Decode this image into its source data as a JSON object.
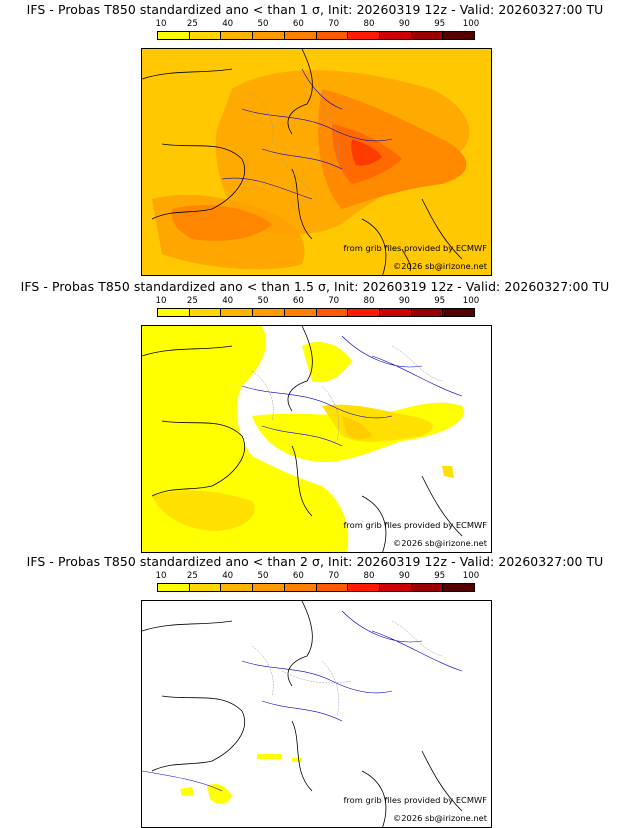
{
  "legend": {
    "ticks": [
      "10",
      "25",
      "40",
      "50",
      "60",
      "70",
      "80",
      "90",
      "95",
      "100"
    ],
    "colors": [
      "#ffff00",
      "#ffd700",
      "#ffb400",
      "#ff9a00",
      "#ff7f00",
      "#ff5a00",
      "#ff1a00",
      "#cc0000",
      "#990000",
      "#550000"
    ]
  },
  "panels": [
    {
      "title": "IFS - Probas T850  standardized ano < than 1 σ, Init: 20260319 12z - Valid: 20260327:00 TU",
      "credit_source": "from grib files provided by ECMWF",
      "credit_author": "©2026 sb@irizone.net",
      "base_fill": "#ffcc00"
    },
    {
      "title": "IFS - Probas T850  standardized ano < than 1.5 σ, Init: 20260319 12z - Valid: 20260327:00 TU",
      "credit_source": "from grib files provided by ECMWF",
      "credit_author": "©2026 sb@irizone.net",
      "base_fill": "#ffff00"
    },
    {
      "title": "IFS - Probas T850  standardized ano < than 2 σ, Init: 20260319 12z - Valid: 20260327:00 TU",
      "credit_source": "from grib files provided by ECMWF",
      "credit_author": "©2026 sb@irizone.net",
      "base_fill": "#ffffff"
    }
  ]
}
